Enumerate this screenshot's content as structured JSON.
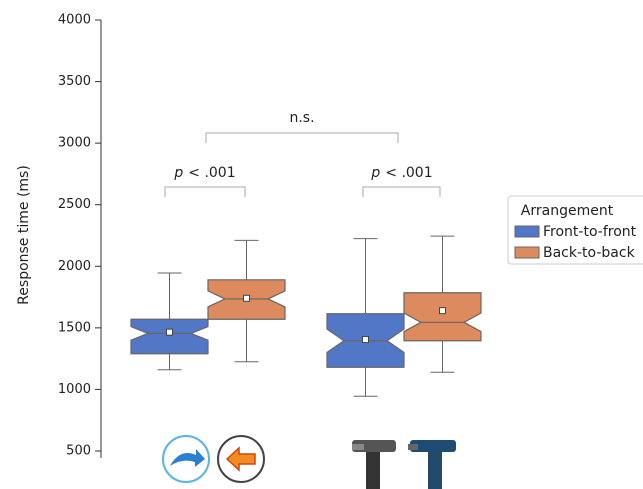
{
  "chart_data": {
    "type": "boxplot",
    "ylabel": "Response time (ms)",
    "ylim": [
      500,
      4000
    ],
    "yticks": [
      500,
      1000,
      1500,
      2000,
      2500,
      3000,
      3500,
      4000
    ],
    "categories": [
      null,
      null
    ],
    "legend_title": "Arrangement",
    "legend": "right",
    "series": [
      {
        "name": "Front-to-front",
        "color": "#5277c7",
        "boxes": [
          {
            "whislo": 1160,
            "q1": 1290,
            "notch_lo": 1400,
            "med": 1455,
            "notch_hi": 1510,
            "q3": 1570,
            "whishi": 1945,
            "mean": 1465
          },
          {
            "whislo": 945,
            "q1": 1180,
            "notch_lo": 1300,
            "med": 1395,
            "notch_hi": 1490,
            "q3": 1615,
            "whishi": 2225,
            "mean": 1405
          }
        ]
      },
      {
        "name": "Back-to-back",
        "color": "#dd8a5e",
        "boxes": [
          {
            "whislo": 1225,
            "q1": 1570,
            "notch_lo": 1670,
            "med": 1735,
            "notch_hi": 1800,
            "q3": 1890,
            "whishi": 2210,
            "mean": 1740
          },
          {
            "whislo": 1140,
            "q1": 1395,
            "notch_lo": 1470,
            "med": 1545,
            "notch_hi": 1620,
            "q3": 1785,
            "whishi": 2245,
            "mean": 1640
          }
        ]
      }
    ],
    "annotations": [
      {
        "p": "p",
        "text": "< .001"
      },
      {
        "p": "p",
        "text": "< .001"
      },
      {
        "text": "n.s."
      }
    ]
  }
}
